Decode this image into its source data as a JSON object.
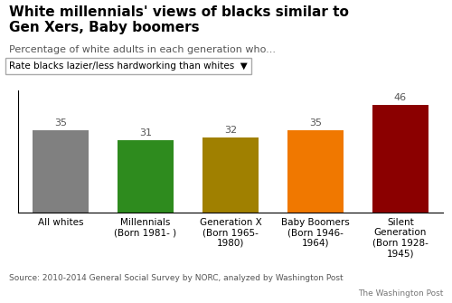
{
  "chart_data": {
    "type": "bar",
    "title": "White millennials' views of blacks similar to\nGen Xers, Baby boomers",
    "subtitle": "Percentage of white adults in each generation who...",
    "annotations": [
      "Rate blacks lazier/less hardworking than whites  ▼",
      "Source: 2010-2014 General Social Survey by NORC, analyzed by Washington Post",
      "The Washington Post"
    ],
    "categories": [
      "All whites",
      "Millennials\n(Born 1981- )",
      "Generation X\n(Born 1965-\n1980)",
      "Baby Boomers\n(Born 1946-\n1964)",
      "Silent\nGeneration\n(Born 1928-\n1945)"
    ],
    "values": [
      35,
      31,
      32,
      35,
      46
    ],
    "colors": [
      "#808080",
      "#2e8b1e",
      "#a08000",
      "#f07800",
      "#8b0000"
    ],
    "ylim": [
      0,
      52
    ],
    "data_labels": true,
    "tick_labels": "x"
  }
}
